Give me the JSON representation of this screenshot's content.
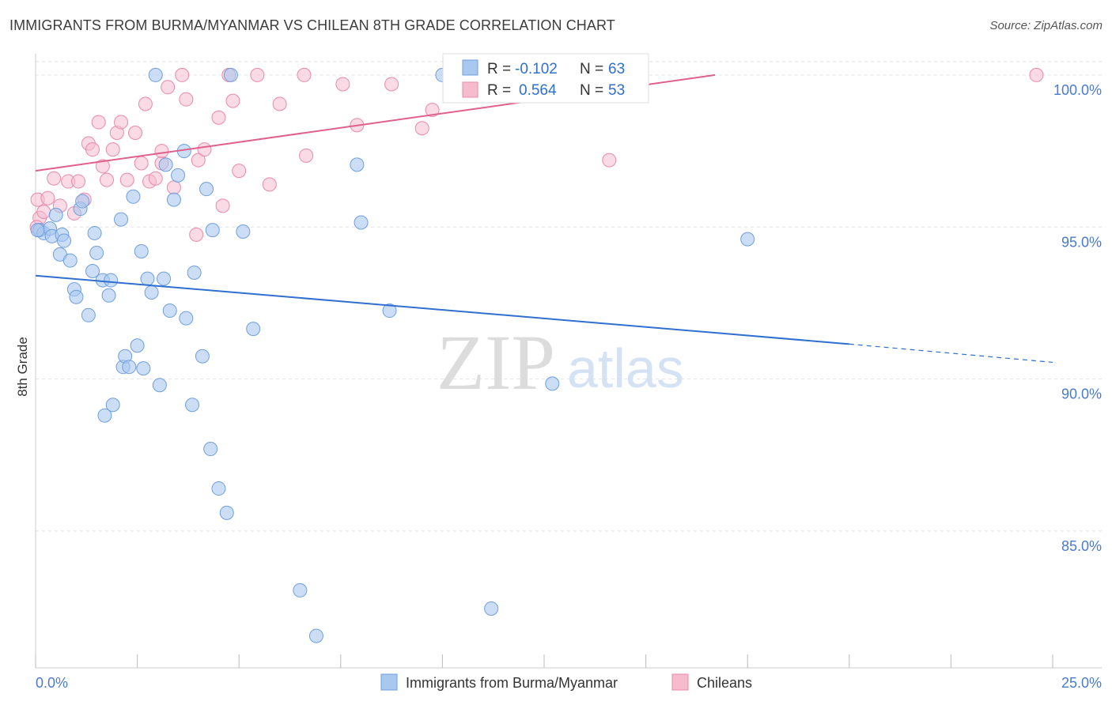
{
  "header": {
    "title": "IMMIGRANTS FROM BURMA/MYANMAR VS CHILEAN 8TH GRADE CORRELATION CHART",
    "source": "Source: ZipAtlas.com"
  },
  "watermark": {
    "zip": "ZIP",
    "atlas": "atlas"
  },
  "legend_top": {
    "burma": {
      "r_label": "R = ",
      "r_value": "-0.102",
      "n_label": "N = ",
      "n_value": "63"
    },
    "chile": {
      "r_label": "R = ",
      "r_value": "0.564",
      "n_label": "N = ",
      "n_value": "53"
    }
  },
  "legend_bottom": {
    "burma": "Immigrants from Burma/Myanmar",
    "chile": "Chileans"
  },
  "colors": {
    "burma_fill": "#a9c8f0",
    "burma_stroke": "#6f9fde",
    "burma_line": "#2f6fcf",
    "chile_fill": "#f6bccd",
    "chile_stroke": "#e98aaa",
    "chile_line": "#e0608a",
    "axis_text": "#4a7bd0",
    "grid": "#e2e2e2"
  },
  "chart_data": {
    "type": "scatter",
    "title": "IMMIGRANTS FROM BURMA/MYANMAR VS CHILEAN 8TH GRADE CORRELATION CHART",
    "xlabel": "",
    "ylabel": "8th Grade",
    "xlim": [
      0,
      25
    ],
    "ylim": [
      80.5,
      100.7
    ],
    "x_tick_labels": [
      "0.0%",
      "25.0%"
    ],
    "y_ticks": [
      85,
      90,
      95,
      100
    ],
    "y_tick_labels": [
      "85.0%",
      "90.0%",
      "95.0%",
      "100.0%"
    ],
    "grid": true,
    "legend_position": "bottom",
    "series": [
      {
        "name": "Immigrants from Burma/Myanmar",
        "r": -0.102,
        "n": 63,
        "trend": {
          "x0": 0,
          "y0": 93.4,
          "x1": 20,
          "y1": 91.15,
          "dashed_to_x": 25,
          "dashed_to_y": 90.55
        },
        "points": [
          [
            0.1,
            94.9
          ],
          [
            0.2,
            94.8
          ],
          [
            0.35,
            94.95
          ],
          [
            0.4,
            94.7
          ],
          [
            0.5,
            95.4
          ],
          [
            0.6,
            94.1
          ],
          [
            0.65,
            94.75
          ],
          [
            0.7,
            94.55
          ],
          [
            0.85,
            93.9
          ],
          [
            0.95,
            92.95
          ],
          [
            1.0,
            92.7
          ],
          [
            1.1,
            95.6
          ],
          [
            1.15,
            95.85
          ],
          [
            1.3,
            92.1
          ],
          [
            1.4,
            93.55
          ],
          [
            1.45,
            94.8
          ],
          [
            1.5,
            94.15
          ],
          [
            1.65,
            93.25
          ],
          [
            1.7,
            88.8
          ],
          [
            1.8,
            92.75
          ],
          [
            1.85,
            93.25
          ],
          [
            1.9,
            89.15
          ],
          [
            2.1,
            95.25
          ],
          [
            2.15,
            90.4
          ],
          [
            2.2,
            90.75
          ],
          [
            2.3,
            90.4
          ],
          [
            2.4,
            96.0
          ],
          [
            2.5,
            91.1
          ],
          [
            2.6,
            94.2
          ],
          [
            2.65,
            90.35
          ],
          [
            2.75,
            93.3
          ],
          [
            2.85,
            92.85
          ],
          [
            2.95,
            100.0
          ],
          [
            3.05,
            89.8
          ],
          [
            3.15,
            93.3
          ],
          [
            3.2,
            97.05
          ],
          [
            3.3,
            92.25
          ],
          [
            3.4,
            95.9
          ],
          [
            3.5,
            96.7
          ],
          [
            3.65,
            97.5
          ],
          [
            3.7,
            92.0
          ],
          [
            3.85,
            89.15
          ],
          [
            3.9,
            93.5
          ],
          [
            4.1,
            90.75
          ],
          [
            4.2,
            96.25
          ],
          [
            4.3,
            87.7
          ],
          [
            4.35,
            94.9
          ],
          [
            4.5,
            86.4
          ],
          [
            4.7,
            85.6
          ],
          [
            4.8,
            100.0
          ],
          [
            5.1,
            94.85
          ],
          [
            5.35,
            91.65
          ],
          [
            6.5,
            83.05
          ],
          [
            6.9,
            81.55
          ],
          [
            7.9,
            97.05
          ],
          [
            8.0,
            95.15
          ],
          [
            8.7,
            92.25
          ],
          [
            10.0,
            100.0
          ],
          [
            11.2,
            82.45
          ],
          [
            12.7,
            89.85
          ],
          [
            13.3,
            100.0
          ],
          [
            17.5,
            94.6
          ],
          [
            0.05,
            94.9
          ]
        ]
      },
      {
        "name": "Chileans",
        "r": 0.564,
        "n": 53,
        "trend": {
          "x0": 0,
          "y0": 96.85,
          "x1": 16.7,
          "y1": 100.0
        },
        "points": [
          [
            0.05,
            95.9
          ],
          [
            0.1,
            95.3
          ],
          [
            0.2,
            95.5
          ],
          [
            0.3,
            95.95
          ],
          [
            0.45,
            96.6
          ],
          [
            0.6,
            95.7
          ],
          [
            0.8,
            96.5
          ],
          [
            0.95,
            95.45
          ],
          [
            1.05,
            96.5
          ],
          [
            1.2,
            95.9
          ],
          [
            1.3,
            97.75
          ],
          [
            1.4,
            97.55
          ],
          [
            1.55,
            98.45
          ],
          [
            1.65,
            97.0
          ],
          [
            1.75,
            96.55
          ],
          [
            1.9,
            97.55
          ],
          [
            2.0,
            98.1
          ],
          [
            2.1,
            98.45
          ],
          [
            2.25,
            96.55
          ],
          [
            2.45,
            98.1
          ],
          [
            2.6,
            97.1
          ],
          [
            2.7,
            99.05
          ],
          [
            2.8,
            96.5
          ],
          [
            2.95,
            96.6
          ],
          [
            3.1,
            97.1
          ],
          [
            3.1,
            97.5
          ],
          [
            3.25,
            99.6
          ],
          [
            3.4,
            96.3
          ],
          [
            3.6,
            100.0
          ],
          [
            3.7,
            99.2
          ],
          [
            3.95,
            94.75
          ],
          [
            4.0,
            97.2
          ],
          [
            4.15,
            97.55
          ],
          [
            4.5,
            98.6
          ],
          [
            4.6,
            95.7
          ],
          [
            4.75,
            100.0
          ],
          [
            4.85,
            99.15
          ],
          [
            5.0,
            96.85
          ],
          [
            5.45,
            100.0
          ],
          [
            5.75,
            96.4
          ],
          [
            6.0,
            99.05
          ],
          [
            6.6,
            100.0
          ],
          [
            6.65,
            97.35
          ],
          [
            7.55,
            99.7
          ],
          [
            7.9,
            98.35
          ],
          [
            8.75,
            99.7
          ],
          [
            9.5,
            98.25
          ],
          [
            9.75,
            98.85
          ],
          [
            13.35,
            100.0
          ],
          [
            14.0,
            100.0
          ],
          [
            14.1,
            97.2
          ],
          [
            24.6,
            100.0
          ],
          [
            0.03,
            95.0
          ]
        ]
      }
    ]
  }
}
